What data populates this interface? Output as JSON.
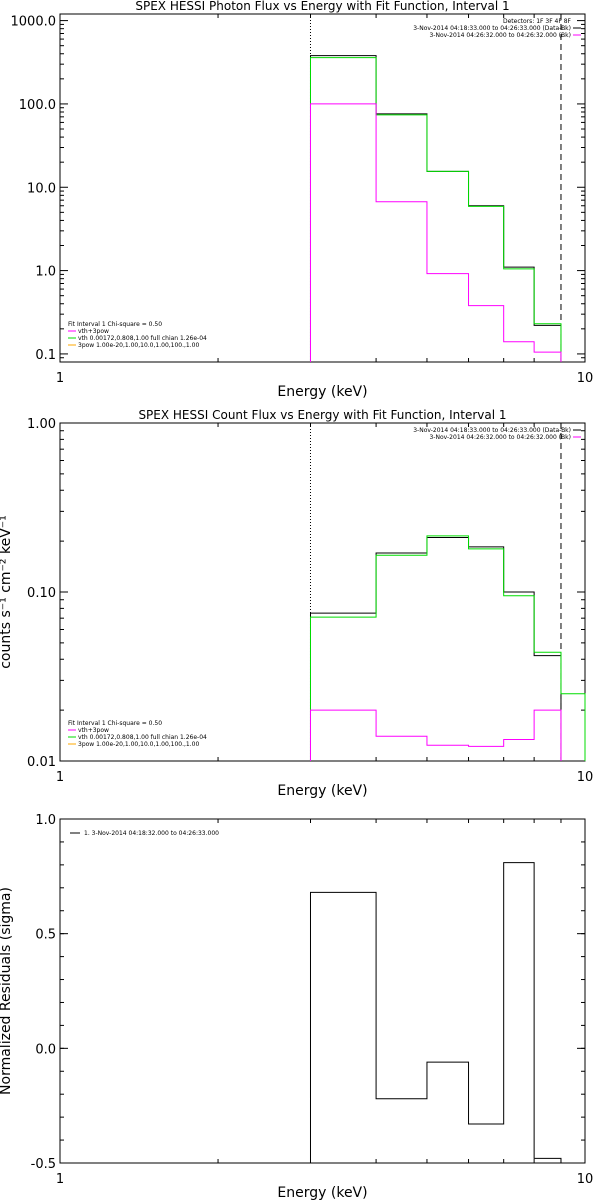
{
  "chart_data": [
    {
      "type": "line",
      "step": true,
      "title": "SPEX HESSI Photon Flux vs Energy with Fit Function, Interval 1",
      "xlabel": "Energy (keV)",
      "ylabel": "",
      "xscale": "log",
      "yscale": "log",
      "xlim": [
        1,
        10
      ],
      "ylim": [
        0.08,
        1200
      ],
      "x_tick_labels": [
        "1",
        "10"
      ],
      "y_tick_labels": [
        "0.1",
        "1.0",
        "10.0",
        "100.0",
        "1000.0"
      ],
      "y_ticks": [
        0.1,
        1,
        10,
        100,
        1000
      ],
      "bin_edges": [
        3.0,
        4.0,
        5.0,
        6.0,
        7.0,
        8.0,
        9.0
      ],
      "dotted_line_x": 3.0,
      "dashed_line_x": 9.0,
      "series": [
        {
          "color": "#000000",
          "values": [
            380,
            76,
            15.5,
            6.0,
            1.1,
            0.22
          ]
        },
        {
          "color": "#00dd00",
          "values": [
            360,
            74,
            15.5,
            5.9,
            1.05,
            0.23
          ]
        },
        {
          "color": "#ff00ff",
          "values": [
            100,
            6.7,
            0.92,
            0.38,
            0.14,
            0.105
          ]
        }
      ],
      "legend_top_right": [
        "Detectors: 1F 3F 4F 8F",
        "3-Nov-2014 04:18:33.000 to 04:26:33.000 (Data-Bk)",
        "3-Nov-2014 04:26:32.000 to 04:26:32.000 (Bk)"
      ],
      "legend_bottom_left": [
        "Fit Interval  1    Chi-square = 0.50",
        "vth+3pow",
        "vth  0.00172,0.808,1.00   full chian 1.26e-04",
        "3pow  1.00e-20,1.00,10.0,1.00,100.,1.00"
      ]
    },
    {
      "type": "line",
      "step": true,
      "title": "SPEX HESSI Count Flux vs Energy with Fit Function, Interval 1",
      "xlabel": "Energy (keV)",
      "ylabel": "counts s⁻¹ cm⁻² keV⁻¹",
      "xscale": "log",
      "yscale": "log",
      "xlim": [
        1,
        10
      ],
      "ylim": [
        0.01,
        1.0
      ],
      "x_tick_labels": [
        "1",
        "10"
      ],
      "y_tick_labels": [
        "0.01",
        "0.10",
        "1.00"
      ],
      "y_ticks": [
        0.01,
        0.1,
        1.0
      ],
      "bin_edges": [
        3.0,
        4.0,
        5.0,
        6.0,
        7.0,
        8.0,
        9.0,
        10.0
      ],
      "dotted_line_x": 3.0,
      "dashed_line_x": 9.0,
      "series": [
        {
          "color": "#000000",
          "values": [
            0.075,
            0.17,
            0.21,
            0.185,
            0.1,
            0.042
          ]
        },
        {
          "color": "#00dd00",
          "values": [
            0.071,
            0.165,
            0.215,
            0.18,
            0.095,
            0.044,
            0.025
          ]
        },
        {
          "color": "#ff00ff",
          "values": [
            0.02,
            0.014,
            0.0124,
            0.0122,
            0.0134,
            0.02
          ]
        }
      ],
      "legend_top_right": [
        "3-Nov-2014 04:18:33.000 to 04:26:33.000 (Data-Bk)",
        "3-Nov-2014 04:26:32.000 to 04:26:32.000 (Bk)"
      ],
      "legend_bottom_left": [
        "Fit Interval  1    Chi-square = 0.50",
        "vth+3pow",
        "vth  0.00172,0.808,1.00   full chian 1.26e-04",
        "3pow  1.00e-20,1.00,10.0,1.00,100.,1.00"
      ]
    },
    {
      "type": "line",
      "step": true,
      "title": "",
      "xlabel": "Energy (keV)",
      "ylabel": "Normalized Residuals (sigma)",
      "xscale": "log",
      "yscale": "linear",
      "xlim": [
        1,
        10
      ],
      "ylim": [
        -0.5,
        1.0
      ],
      "x_tick_labels": [
        "1",
        "10"
      ],
      "y_tick_labels": [
        "-0.5",
        "0.0",
        "0.5",
        "1.0"
      ],
      "y_ticks": [
        -0.5,
        0.0,
        0.5,
        1.0
      ],
      "bin_edges": [
        3.0,
        4.0,
        5.0,
        6.0,
        7.0,
        8.0,
        9.0
      ],
      "series": [
        {
          "color": "#000000",
          "values": [
            0.68,
            -0.22,
            -0.06,
            -0.33,
            0.81,
            -0.48
          ]
        }
      ],
      "legend_top_left": [
        "1.  3-Nov-2014 04:18:32.000 to 04:26:33.000"
      ]
    }
  ]
}
